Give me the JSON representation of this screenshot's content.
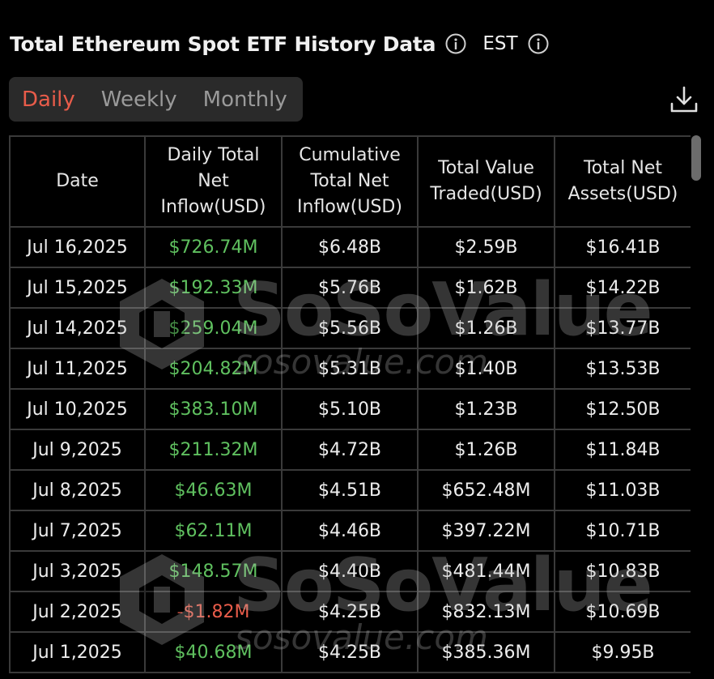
{
  "header": {
    "title": "Total Ethereum Spot ETF History Data",
    "timezone": "EST"
  },
  "tabs": [
    {
      "label": "Daily",
      "active": true
    },
    {
      "label": "Weekly",
      "active": false
    },
    {
      "label": "Monthly",
      "active": false
    }
  ],
  "icons": {
    "info": "info-icon",
    "download": "download-icon"
  },
  "colors": {
    "accent": "#e85c4a",
    "positive": "#5fc05f",
    "negative": "#e85c4a"
  },
  "table": {
    "columns": [
      "Date",
      "Daily Total Net Inflow(USD)",
      "Cumulative Total Net Inflow(USD)",
      "Total Value Traded(USD)",
      "Total Net Assets(USD)"
    ],
    "rows": [
      [
        "Jul 16,2025",
        "$726.74M",
        "$6.48B",
        "$2.59B",
        "$16.41B"
      ],
      [
        "Jul 15,2025",
        "$192.33M",
        "$5.76B",
        "$1.62B",
        "$14.22B"
      ],
      [
        "Jul 14,2025",
        "$259.04M",
        "$5.56B",
        "$1.26B",
        "$13.77B"
      ],
      [
        "Jul 11,2025",
        "$204.82M",
        "$5.31B",
        "$1.40B",
        "$13.53B"
      ],
      [
        "Jul 10,2025",
        "$383.10M",
        "$5.10B",
        "$1.23B",
        "$12.50B"
      ],
      [
        "Jul 9,2025",
        "$211.32M",
        "$4.72B",
        "$1.26B",
        "$11.84B"
      ],
      [
        "Jul 8,2025",
        "$46.63M",
        "$4.51B",
        "$652.48M",
        "$11.03B"
      ],
      [
        "Jul 7,2025",
        "$62.11M",
        "$4.46B",
        "$397.22M",
        "$10.71B"
      ],
      [
        "Jul 3,2025",
        "$148.57M",
        "$4.40B",
        "$481.44M",
        "$10.83B"
      ],
      [
        "Jul 2,2025",
        "-$1.82M",
        "$4.25B",
        "$832.13M",
        "$10.69B"
      ],
      [
        "Jul 1,2025",
        "$40.68M",
        "$4.25B",
        "$385.36M",
        "$9.95B"
      ]
    ]
  },
  "watermark": {
    "brand": "SoSoValue",
    "url": "sosovalue.com"
  }
}
